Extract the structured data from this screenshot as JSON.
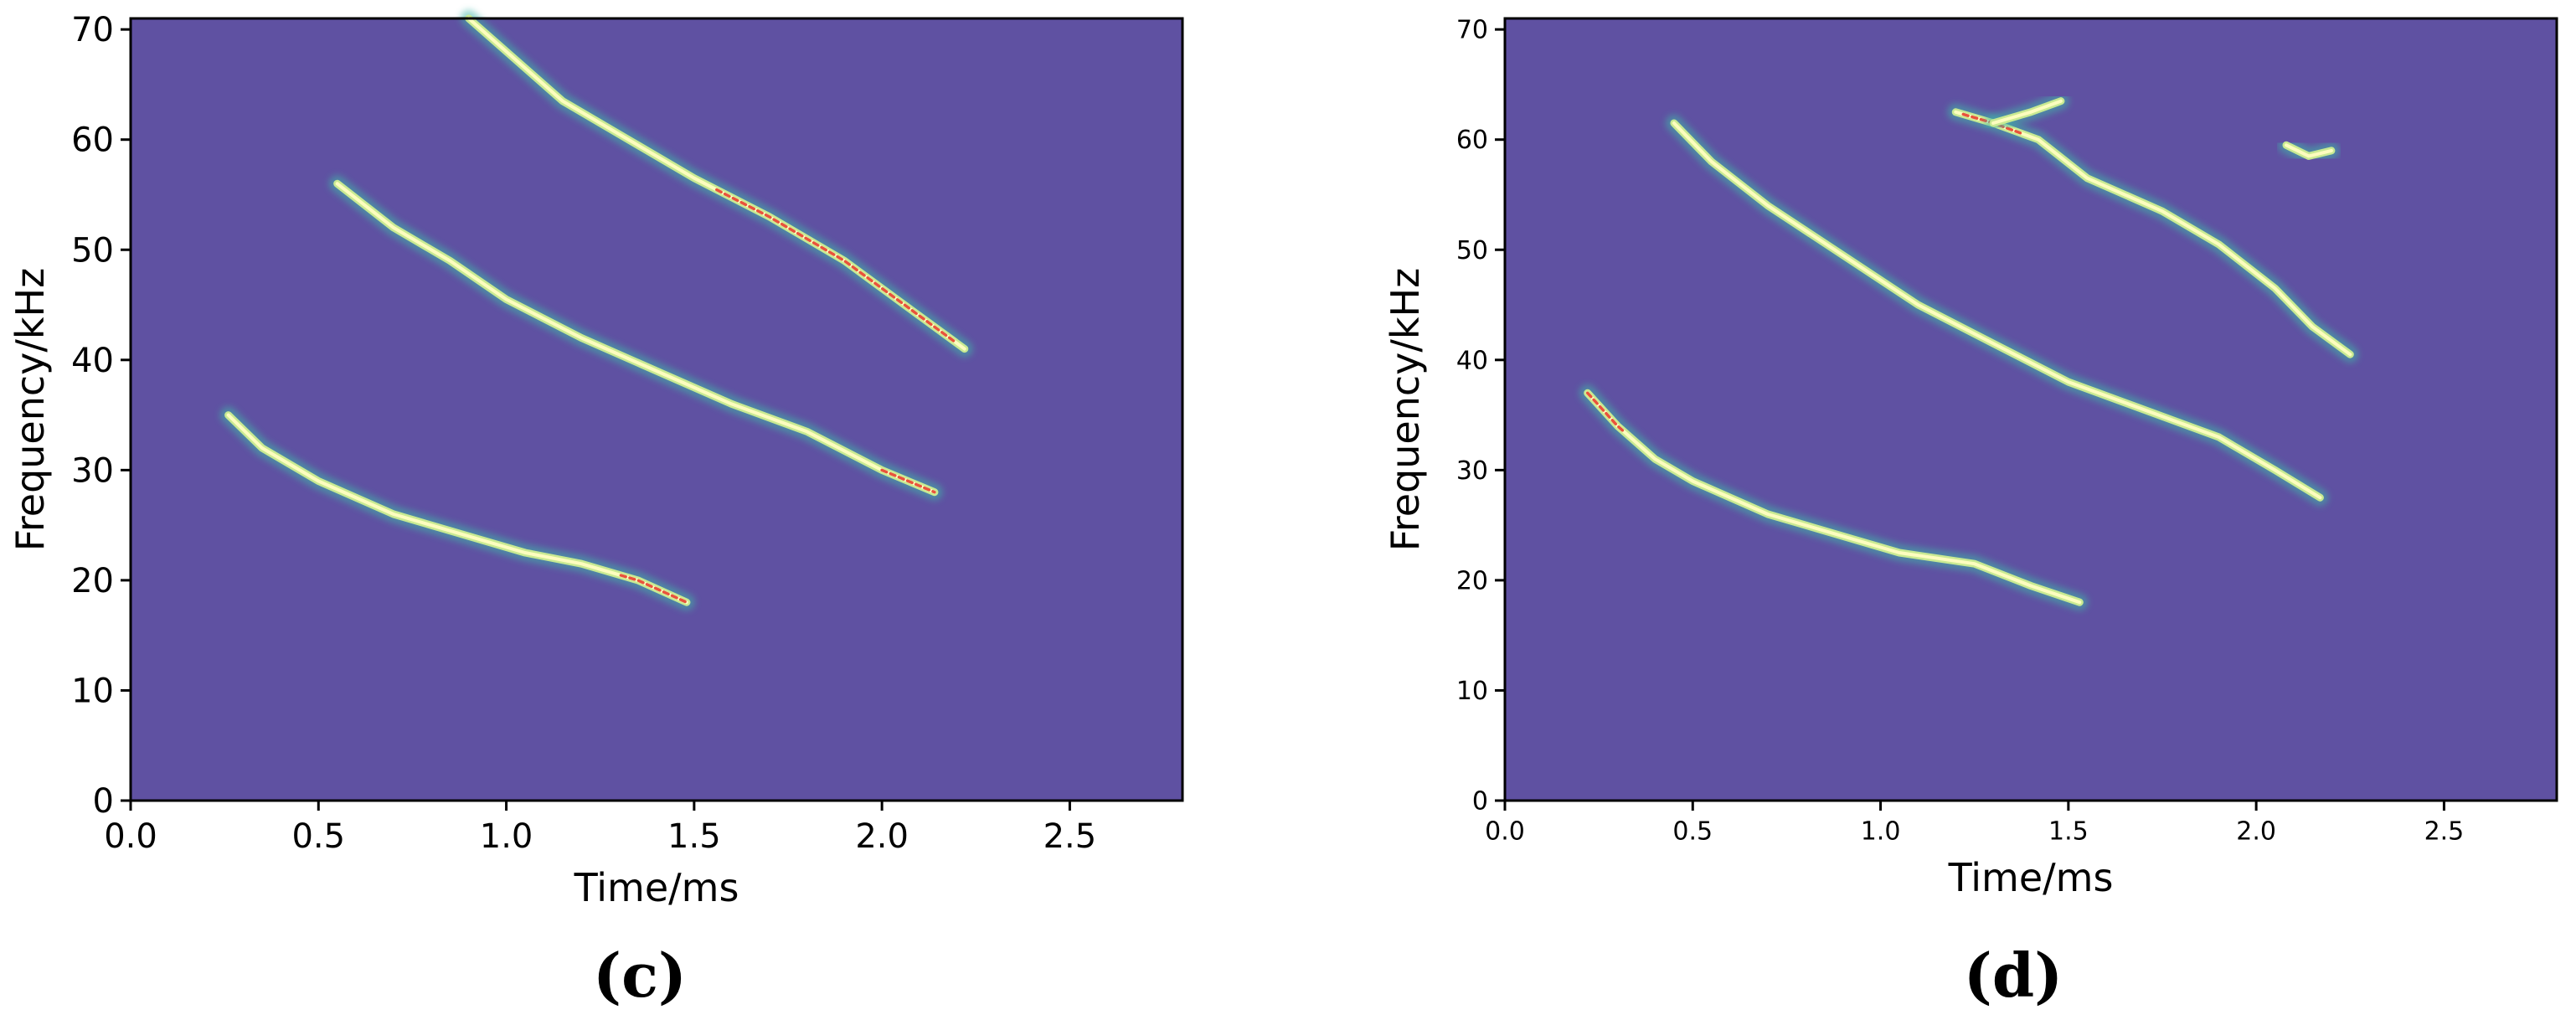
{
  "colors": {
    "background": "#5f51a2",
    "trace_edge": "#3fb7a8",
    "trace_mid": "#c9ea92",
    "trace_core": "#fdfdbf",
    "trace_peak": "#e8533c",
    "axis": "#000000"
  },
  "chart_data": [
    {
      "type": "heatmap",
      "panel_label": "(c)",
      "xlabel": "Time/ms",
      "ylabel": "Frequency/kHz",
      "xlim": [
        0.0,
        2.8
      ],
      "ylim": [
        0,
        71
      ],
      "xticks": [
        "0.0",
        "0.5",
        "1.0",
        "1.5",
        "2.0",
        "2.5"
      ],
      "yticks": [
        "0",
        "10",
        "20",
        "30",
        "40",
        "50",
        "60",
        "70"
      ],
      "grid": false,
      "traces": [
        {
          "points": [
            [
              0.26,
              35
            ],
            [
              0.35,
              32
            ],
            [
              0.5,
              29
            ],
            [
              0.7,
              26
            ],
            [
              0.9,
              24
            ],
            [
              1.05,
              22.5
            ],
            [
              1.2,
              21.5
            ],
            [
              1.35,
              20
            ],
            [
              1.48,
              18
            ]
          ],
          "peak_range": [
            1.3,
            1.48
          ]
        },
        {
          "points": [
            [
              0.55,
              56
            ],
            [
              0.7,
              52
            ],
            [
              0.85,
              49
            ],
            [
              1.0,
              45.5
            ],
            [
              1.2,
              42
            ],
            [
              1.4,
              39
            ],
            [
              1.6,
              36
            ],
            [
              1.8,
              33.5
            ],
            [
              2.0,
              30
            ],
            [
              2.14,
              28
            ]
          ],
          "peak_range": [
            2.0,
            2.14
          ]
        },
        {
          "points": [
            [
              0.9,
              71
            ],
            [
              1.0,
              68
            ],
            [
              1.15,
              63.5
            ],
            [
              1.3,
              60.5
            ],
            [
              1.5,
              56.5
            ],
            [
              1.7,
              53
            ],
            [
              1.9,
              49
            ],
            [
              2.1,
              44
            ],
            [
              2.22,
              41
            ]
          ],
          "peak_range": [
            1.55,
            2.2
          ]
        }
      ]
    },
    {
      "type": "heatmap",
      "panel_label": "(d)",
      "xlabel": "Time/ms",
      "ylabel": "Frequency/kHz",
      "xlim": [
        0.0,
        2.8
      ],
      "ylim": [
        0,
        71
      ],
      "xticks": [
        "0.0",
        "0.5",
        "1.0",
        "1.5",
        "2.0",
        "2.5"
      ],
      "yticks": [
        "0",
        "10",
        "20",
        "30",
        "40",
        "50",
        "60",
        "70"
      ],
      "grid": false,
      "traces": [
        {
          "points": [
            [
              0.22,
              37
            ],
            [
              0.3,
              34
            ],
            [
              0.4,
              31
            ],
            [
              0.5,
              29
            ],
            [
              0.7,
              26
            ],
            [
              0.9,
              24
            ],
            [
              1.05,
              22.5
            ],
            [
              1.25,
              21.5
            ],
            [
              1.4,
              19.5
            ],
            [
              1.53,
              18
            ]
          ],
          "peak_range": [
            0.22,
            0.32
          ]
        },
        {
          "points": [
            [
              0.45,
              61.5
            ],
            [
              0.55,
              58
            ],
            [
              0.7,
              54
            ],
            [
              0.9,
              49.5
            ],
            [
              1.1,
              45
            ],
            [
              1.3,
              41.5
            ],
            [
              1.5,
              38
            ],
            [
              1.7,
              35.5
            ],
            [
              1.9,
              33
            ],
            [
              2.05,
              30
            ],
            [
              2.17,
              27.5
            ]
          ],
          "peak_range": null
        },
        {
          "points": [
            [
              1.2,
              62.5
            ],
            [
              1.3,
              61.5
            ],
            [
              1.42,
              60
            ],
            [
              1.55,
              56.5
            ],
            [
              1.75,
              53.5
            ],
            [
              1.9,
              50.5
            ],
            [
              2.05,
              46.5
            ],
            [
              2.15,
              43
            ],
            [
              2.25,
              40.5
            ]
          ],
          "peak_range": [
            1.22,
            1.38
          ]
        },
        {
          "points": [
            [
              1.3,
              61.5
            ],
            [
              1.4,
              62.5
            ],
            [
              1.48,
              63.5
            ]
          ],
          "peak_range": null
        },
        {
          "points": [
            [
              2.08,
              59.5
            ],
            [
              2.14,
              58.5
            ],
            [
              2.2,
              59
            ]
          ],
          "peak_range": null
        }
      ]
    }
  ]
}
